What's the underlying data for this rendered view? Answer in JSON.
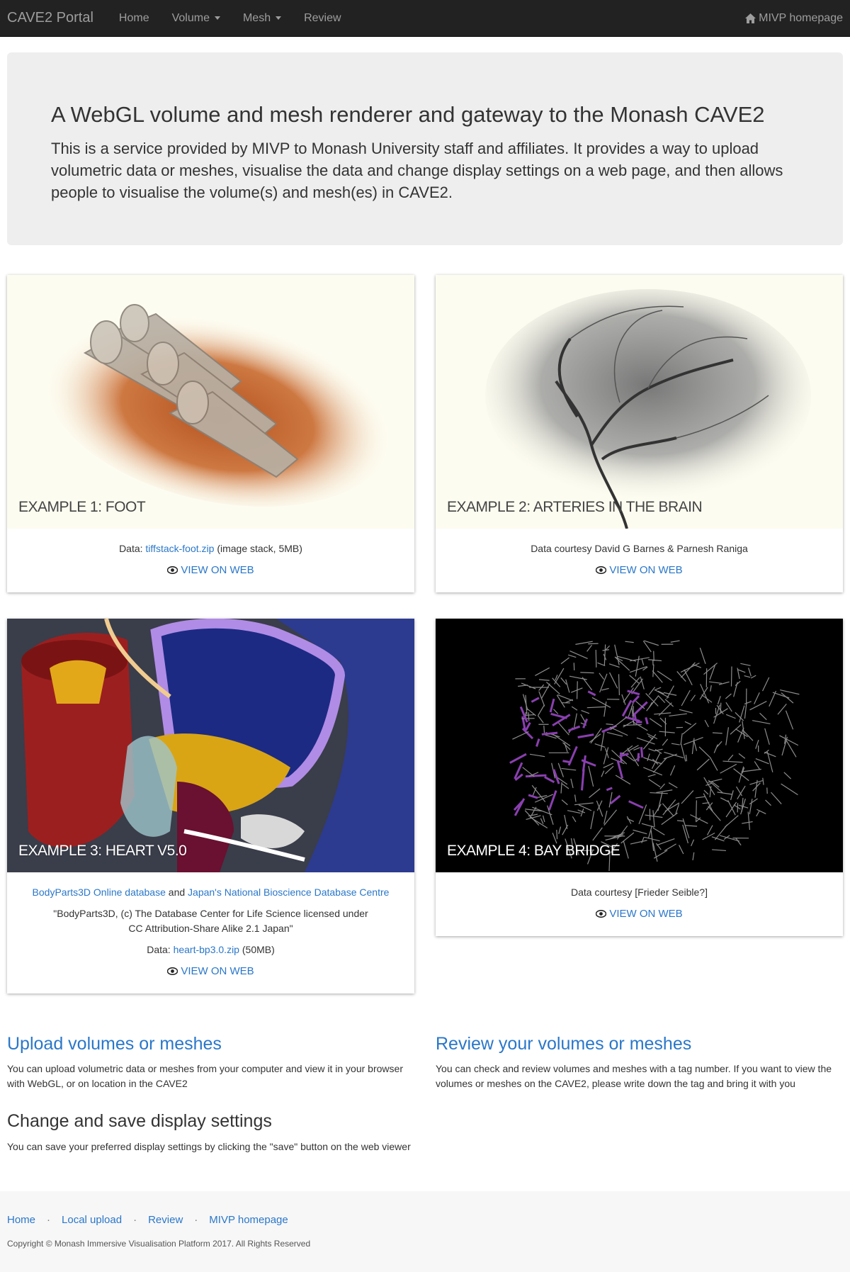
{
  "navbar": {
    "brand": "CAVE2 Portal",
    "items": [
      {
        "label": "Home"
      },
      {
        "label": "Volume"
      },
      {
        "label": "Mesh"
      },
      {
        "label": "Review"
      }
    ],
    "right_link": "MIVP homepage"
  },
  "jumbotron": {
    "title": "A WebGL volume and mesh renderer and gateway to the Monash CAVE2",
    "text": "This is a service provided by MIVP to Monash University staff and affiliates. It provides a way to upload volumetric data or meshes, visualise the data and change display settings on a web page, and then allows people to visualise the volume(s) and mesh(es) in CAVE2."
  },
  "examples": [
    {
      "caption": "Example 1: Foot",
      "data_prefix": "Data: ",
      "data_link": "tiffstack-foot.zip",
      "data_suffix": " (image stack, 5MB)",
      "view_label": "VIEW ON WEB"
    },
    {
      "caption": "Example 2: Arteries in the brain",
      "credit": "Data courtesy David G Barnes & Parnesh Raniga",
      "view_label": "VIEW ON WEB"
    },
    {
      "caption": "Example 3: Heart v5.0",
      "link1": "BodyParts3D Online database",
      "and": " and ",
      "link2": "Japan's National Bioscience Database Centre",
      "license": "\"BodyParts3D, (c) The Database Center for Life Science licensed under CC Attribution-Share Alike 2.1 Japan\"",
      "data_prefix": "Data: ",
      "data_link": "heart-bp3.0.zip",
      "data_suffix": " (50MB)",
      "view_label": "VIEW ON WEB"
    },
    {
      "caption": "Example 4: Bay Bridge",
      "credit": "Data courtesy [Frieder Seible?]",
      "view_label": "VIEW ON WEB"
    }
  ],
  "sections": {
    "upload": {
      "title": "Upload volumes or meshes",
      "text": "You can upload volumetric data or meshes from your computer and view it in your browser with WebGL, or on location in the CAVE2"
    },
    "review": {
      "title": "Review your volumes or meshes",
      "text": "You can check and review volumes and meshes with a tag number. If you want to view the volumes or meshes on the CAVE2, please write down the tag and bring it with you"
    },
    "settings": {
      "title": "Change and save display settings",
      "text": "You can save your preferred display settings by clicking the \"save\" button on the web viewer"
    }
  },
  "footer": {
    "links": [
      "Home",
      "Local upload",
      "Review",
      "MIVP homepage"
    ],
    "separator": "·",
    "copyright": "Copyright © Monash Immersive Visualisation Platform 2017. All Rights Reserved"
  },
  "colors": {
    "navbar_bg": "#222222",
    "link": "#2a77c9",
    "jumbotron_bg": "#eeeeee",
    "footer_bg": "#f7f7f7"
  }
}
